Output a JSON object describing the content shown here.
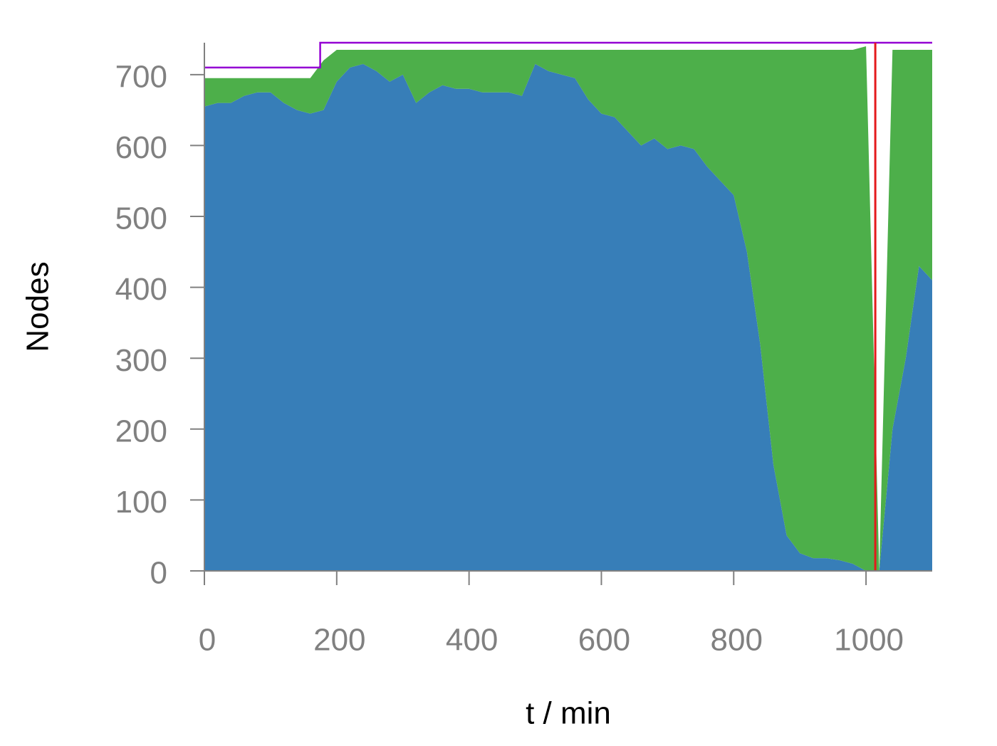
{
  "chart_data": {
    "type": "stacked-area",
    "x_label": "t / min",
    "y_label": "Nodes",
    "x": [
      0,
      20,
      40,
      60,
      80,
      100,
      120,
      140,
      160,
      180,
      200,
      220,
      240,
      260,
      280,
      300,
      320,
      340,
      360,
      380,
      400,
      420,
      440,
      460,
      480,
      500,
      520,
      540,
      560,
      580,
      600,
      620,
      640,
      660,
      680,
      700,
      720,
      740,
      760,
      780,
      800,
      820,
      840,
      860,
      880,
      900,
      920,
      940,
      960,
      980,
      1000,
      1020,
      1040,
      1060,
      1080,
      1100
    ],
    "series": [
      {
        "color": "#377eb8",
        "values": [
          655,
          660,
          660,
          670,
          675,
          675,
          660,
          650,
          645,
          650,
          690,
          710,
          715,
          705,
          690,
          700,
          660,
          675,
          685,
          680,
          680,
          675,
          675,
          675,
          670,
          715,
          705,
          700,
          695,
          665,
          645,
          640,
          620,
          600,
          610,
          595,
          600,
          595,
          570,
          550,
          530,
          450,
          320,
          150,
          50,
          25,
          18,
          18,
          15,
          10,
          0,
          0,
          200,
          300,
          430,
          410
        ]
      },
      {
        "color": "#4daf4a",
        "values": [
          40,
          35,
          35,
          25,
          20,
          20,
          35,
          45,
          50,
          70,
          45,
          25,
          20,
          30,
          45,
          35,
          75,
          60,
          50,
          55,
          55,
          60,
          60,
          60,
          65,
          20,
          30,
          35,
          40,
          70,
          90,
          95,
          115,
          135,
          125,
          140,
          135,
          140,
          165,
          185,
          205,
          285,
          415,
          585,
          685,
          710,
          717,
          717,
          720,
          725,
          740,
          0,
          535,
          435,
          305,
          325
        ]
      }
    ],
    "total_line": {
      "color": "#9400d3",
      "x": [
        0,
        175,
        175,
        1100
      ],
      "values": [
        710,
        710,
        745,
        745
      ]
    },
    "vline": {
      "x": 1014,
      "color": "#e41a1c"
    },
    "xlim": [
      0,
      1100
    ],
    "ylim": [
      0,
      745
    ],
    "xticks": [
      0,
      200,
      400,
      600,
      800,
      1000
    ],
    "yticks": [
      0,
      100,
      200,
      300,
      400,
      500,
      600,
      700
    ]
  }
}
